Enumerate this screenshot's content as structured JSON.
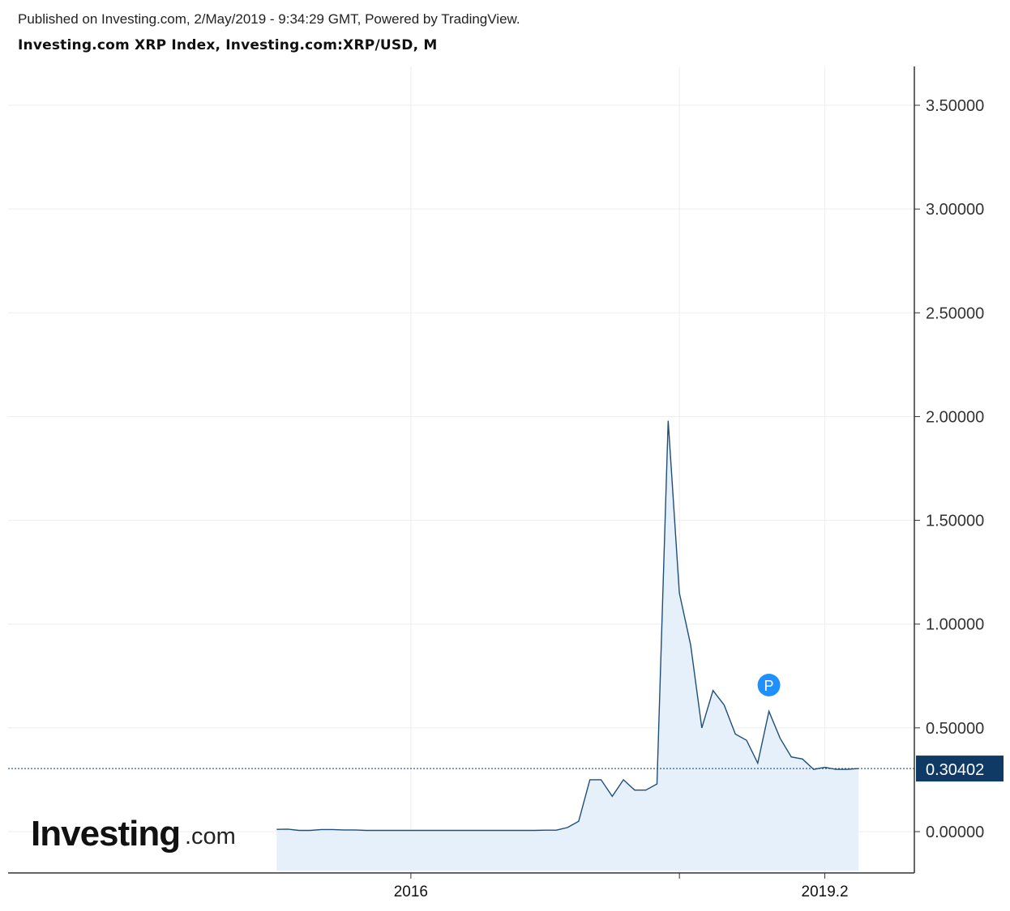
{
  "header": {
    "published": "Published on Investing.com, 2/May/2019 - 9:34:29 GMT, Powered by TradingView.",
    "title": "Investing.com XRP Index, Investing.com:XRP/USD, M"
  },
  "logo": {
    "main": "Investing",
    "suffix": ".com"
  },
  "marker": {
    "label": "P",
    "color": "#1e90ff",
    "date": "2018-09"
  },
  "colors": {
    "line": "#1f4e79",
    "fill": "#e6f0fb",
    "last_label_bg": "#0f3a66",
    "grid": "#eeeeee",
    "axis": "#333333",
    "marker": "#1e90ff"
  },
  "chart_data": {
    "type": "area",
    "title": "Investing.com XRP Index, Investing.com:XRP/USD, M",
    "xlabel": "",
    "ylabel": "",
    "ylim": [
      -0.2,
      3.66
    ],
    "xlim": [
      "2013-01",
      "2019-10"
    ],
    "y_ticks": [
      "0.00000",
      "0.50000",
      "1.00000",
      "1.50000",
      "2.00000",
      "2.50000",
      "3.00000",
      "3.50000"
    ],
    "x_ticks": [
      {
        "date": "2016-01",
        "label": "2016"
      },
      {
        "date": "2018-01",
        "label": ""
      },
      {
        "date": "2019-02",
        "label": "2019.2"
      }
    ],
    "last_value": 0.30402,
    "last_value_label": "0.30402",
    "grid": true,
    "series": [
      {
        "x": [
          "2015-01",
          "2015-02",
          "2015-03",
          "2015-04",
          "2015-05",
          "2015-06",
          "2015-07",
          "2015-08",
          "2015-09",
          "2015-10",
          "2015-11",
          "2015-12",
          "2016-01",
          "2016-02",
          "2016-03",
          "2016-04",
          "2016-05",
          "2016-06",
          "2016-07",
          "2016-08",
          "2016-09",
          "2016-10",
          "2016-11",
          "2016-12",
          "2017-01",
          "2017-02",
          "2017-03",
          "2017-04",
          "2017-05",
          "2017-06",
          "2017-07",
          "2017-08",
          "2017-09",
          "2017-10",
          "2017-11",
          "2017-12",
          "2018-01",
          "2018-02",
          "2018-03",
          "2018-04",
          "2018-05",
          "2018-06",
          "2018-07",
          "2018-08",
          "2018-09",
          "2018-10",
          "2018-11",
          "2018-12",
          "2019-01",
          "2019-02",
          "2019-03",
          "2019-04",
          "2019-05"
        ],
        "values": [
          0.011,
          0.012,
          0.006,
          0.006,
          0.01,
          0.01,
          0.008,
          0.008,
          0.006,
          0.006,
          0.006,
          0.006,
          0.006,
          0.006,
          0.006,
          0.006,
          0.006,
          0.006,
          0.006,
          0.006,
          0.006,
          0.006,
          0.006,
          0.006,
          0.007,
          0.007,
          0.02,
          0.05,
          0.25,
          0.25,
          0.17,
          0.25,
          0.2,
          0.2,
          0.23,
          1.98,
          1.15,
          0.9,
          0.5,
          0.68,
          0.61,
          0.47,
          0.44,
          0.33,
          0.58,
          0.45,
          0.36,
          0.35,
          0.3,
          0.31,
          0.3,
          0.3,
          0.304
        ]
      }
    ]
  }
}
